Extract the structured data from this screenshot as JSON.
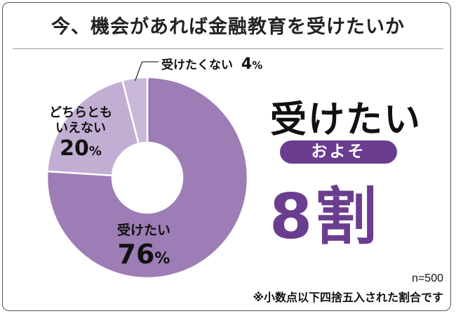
{
  "title": "今、機会があれば金融教育を受けたいか",
  "colors": {
    "slice_main": "#9d7db5",
    "slice_mid": "#c3aed3",
    "slice_small": "#c9b8d9",
    "accent": "#6b3d8f"
  },
  "chart_data": {
    "type": "pie",
    "donut": true,
    "labels": [
      "受けたい",
      "どちらともいえない",
      "受けたくない"
    ],
    "values": [
      76,
      20,
      4
    ],
    "unit": "%"
  },
  "labels": {
    "want": {
      "name": "受けたい",
      "value": "76",
      "pct": "%"
    },
    "neither": {
      "line1": "どちらとも",
      "line2": "いえない",
      "value": "20",
      "pct": "%"
    },
    "not_want": {
      "name": "受けたくない",
      "value": "4",
      "pct": "%"
    }
  },
  "callout": {
    "phrase": "受けたい",
    "pill": "およそ",
    "value": "8割"
  },
  "notes": {
    "sample": "n=500",
    "rounding": "※小数点以下四捨五入された割合です"
  }
}
